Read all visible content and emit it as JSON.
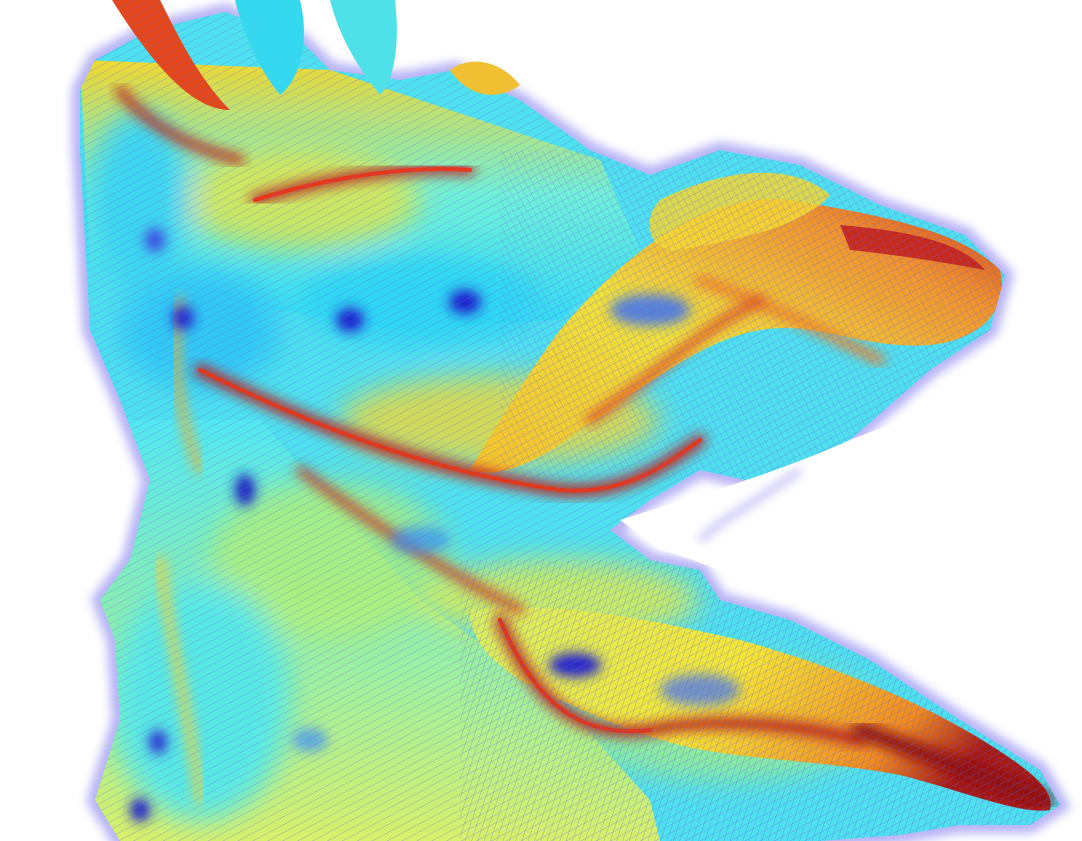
{
  "scene": {
    "kind": "curvature-colored 3D surface rendering with principal-direction hatching",
    "background": "#ffffff",
    "colormap": [
      "#1a1acc",
      "#2f6bff",
      "#33e6ff",
      "#c8f078",
      "#f5ec2a",
      "#f5a020",
      "#e03a14",
      "#8e1010"
    ],
    "hatch_color": "#6a62e6",
    "halo_color": "#9c96f2"
  }
}
